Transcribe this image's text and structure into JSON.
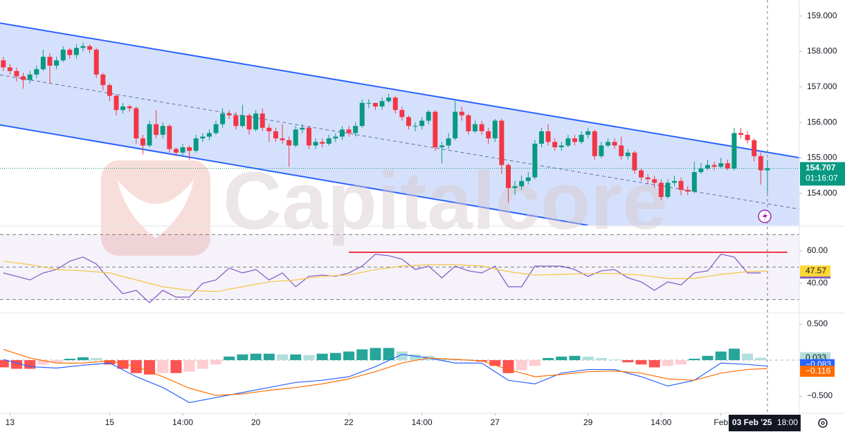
{
  "chart_data": [
    {
      "type": "candlestick",
      "watermark": "Capitalcore",
      "xlim": [
        -0.5,
        119.8
      ],
      "ylim": [
        153.1,
        159.45
      ],
      "yticks": [
        {
          "value": 154,
          "label": "154.000"
        },
        {
          "value": 155,
          "label": "155.000"
        },
        {
          "value": 156,
          "label": "156.000"
        },
        {
          "value": 157,
          "label": "157.000"
        },
        {
          "value": 158,
          "label": "158.000"
        },
        {
          "value": 159,
          "label": "159.000"
        }
      ],
      "xticks": [
        {
          "value": 1,
          "label": "13"
        },
        {
          "value": 16,
          "label": "15"
        },
        {
          "value": 27,
          "label": "14:00"
        },
        {
          "value": 38,
          "label": "20"
        },
        {
          "value": 52,
          "label": "22"
        },
        {
          "value": 63,
          "label": "14:00"
        },
        {
          "value": 74,
          "label": "27"
        },
        {
          "value": 88,
          "label": "29"
        },
        {
          "value": 99,
          "label": "14:00"
        },
        {
          "value": 108,
          "label": "Feb"
        }
      ],
      "crosshair": {
        "value": 115,
        "date": "03 Feb '25",
        "time": "18:00"
      },
      "timer": "01:16:07",
      "up_color": "#089981",
      "down_color": "#f23645",
      "channel": {
        "upper": [
          [
            -0.5,
            158.8
          ],
          [
            120,
            155.0
          ]
        ],
        "lower": [
          [
            -0.5,
            155.93
          ],
          [
            88,
            153.1
          ]
        ],
        "middle": [
          [
            -0.5,
            157.34
          ],
          [
            120,
            153.55
          ]
        ],
        "color": "#2962ff",
        "fill": "#d3dffc"
      },
      "open": [
        157.75,
        157.55,
        157.45,
        157.3,
        157.2,
        157.35,
        157.5,
        157.85,
        157.6,
        157.75,
        158.05,
        157.9,
        158.1,
        158.15,
        158.05,
        157.35,
        157.05,
        156.75,
        156.35,
        156.45,
        156.4,
        155.55,
        155.35,
        155.95,
        155.65,
        155.9,
        155.25,
        155.15,
        155.3,
        155.2,
        155.55,
        155.6,
        155.7,
        155.95,
        156.25,
        156.2,
        155.9,
        156.2,
        155.8,
        156.25,
        155.85,
        155.75,
        155.55,
        155.5,
        155.35,
        155.8,
        155.85,
        155.35,
        155.45,
        155.4,
        155.55,
        155.6,
        155.8,
        155.7,
        155.9,
        156.55,
        156.55,
        156.45,
        156.6,
        156.7,
        156.35,
        156.15,
        155.9,
        155.9,
        156.05,
        156.3,
        155.3,
        155.35,
        155.55,
        156.3,
        156.2,
        155.75,
        155.95,
        155.75,
        155.55,
        156.05,
        154.8,
        154.15,
        154.2,
        154.35,
        154.45,
        155.4,
        155.75,
        155.45,
        155.3,
        155.35,
        155.55,
        155.45,
        155.65,
        155.75,
        155.05,
        155.35,
        155.45,
        155.35,
        155.05,
        155.15,
        154.65,
        154.45,
        154.4,
        154.3,
        153.9,
        154.3,
        154.35,
        154.1,
        154.05,
        154.6,
        154.7,
        154.8,
        154.75,
        154.85,
        154.7,
        155.7,
        155.65,
        155.5,
        155.05,
        154.65
      ],
      "high": [
        157.85,
        157.65,
        157.55,
        157.4,
        157.45,
        157.6,
        158.05,
        157.95,
        157.85,
        158.15,
        158.1,
        158.2,
        158.25,
        158.2,
        158.1,
        157.4,
        157.1,
        156.8,
        156.55,
        156.5,
        156.45,
        155.65,
        156.05,
        156.35,
        156.0,
        155.95,
        155.3,
        155.4,
        155.35,
        155.65,
        155.7,
        155.8,
        156.05,
        156.4,
        156.35,
        156.3,
        156.5,
        156.25,
        156.35,
        156.4,
        155.95,
        155.85,
        155.95,
        155.6,
        155.9,
        155.95,
        155.9,
        155.55,
        155.55,
        155.65,
        155.7,
        155.9,
        155.9,
        156.0,
        156.65,
        156.65,
        156.55,
        156.7,
        156.8,
        156.75,
        156.45,
        156.2,
        156.0,
        156.15,
        156.35,
        156.35,
        155.45,
        155.7,
        156.6,
        156.45,
        156.25,
        156.05,
        156.05,
        155.85,
        156.1,
        156.1,
        154.85,
        154.35,
        154.5,
        154.6,
        155.5,
        155.85,
        155.95,
        155.55,
        155.45,
        155.65,
        155.65,
        155.75,
        155.85,
        155.8,
        155.45,
        155.55,
        155.55,
        155.6,
        155.25,
        155.2,
        154.7,
        154.55,
        154.5,
        154.4,
        154.4,
        154.5,
        154.45,
        154.2,
        154.9,
        154.85,
        154.95,
        154.9,
        155.0,
        154.95,
        155.85,
        155.85,
        155.75,
        155.55,
        155.15,
        154.95
      ],
      "low": [
        157.45,
        157.35,
        157.15,
        156.95,
        157.1,
        157.25,
        157.45,
        157.1,
        157.5,
        157.7,
        157.8,
        157.8,
        158.0,
        157.95,
        157.25,
        156.9,
        156.6,
        156.2,
        156.25,
        156.3,
        155.4,
        155.1,
        155.3,
        155.55,
        155.55,
        155.15,
        155.05,
        155.05,
        154.95,
        155.15,
        155.45,
        155.5,
        155.65,
        155.85,
        156.1,
        155.8,
        155.85,
        155.65,
        155.75,
        155.75,
        155.45,
        155.45,
        155.4,
        154.75,
        155.3,
        155.7,
        155.25,
        155.25,
        155.3,
        155.35,
        155.45,
        155.5,
        155.6,
        155.6,
        155.85,
        156.4,
        156.35,
        156.35,
        156.55,
        156.25,
        156.05,
        155.8,
        155.75,
        155.8,
        155.95,
        155.2,
        154.85,
        155.25,
        155.5,
        156.05,
        155.65,
        155.7,
        155.65,
        155.4,
        155.45,
        154.55,
        153.75,
        153.95,
        154.1,
        154.25,
        154.4,
        155.3,
        155.35,
        155.2,
        155.2,
        155.3,
        155.35,
        155.4,
        155.55,
        154.95,
        155.0,
        155.3,
        155.25,
        154.95,
        154.95,
        154.55,
        154.35,
        154.25,
        154.15,
        153.8,
        153.85,
        154.2,
        153.95,
        153.95,
        154.0,
        154.55,
        154.65,
        154.65,
        154.7,
        154.65,
        154.65,
        155.55,
        155.4,
        154.9,
        154.25,
        154.0
      ],
      "close": [
        157.55,
        157.45,
        157.3,
        157.2,
        157.35,
        157.5,
        157.85,
        157.6,
        157.75,
        158.05,
        157.9,
        158.1,
        158.15,
        158.05,
        157.35,
        157.05,
        156.75,
        156.35,
        156.45,
        156.4,
        155.55,
        155.35,
        155.95,
        155.65,
        155.9,
        155.25,
        155.15,
        155.3,
        155.2,
        155.55,
        155.6,
        155.7,
        155.95,
        156.25,
        156.2,
        155.9,
        156.2,
        155.8,
        156.25,
        155.85,
        155.75,
        155.55,
        155.5,
        155.35,
        155.8,
        155.85,
        155.35,
        155.45,
        155.4,
        155.55,
        155.6,
        155.8,
        155.7,
        155.9,
        156.55,
        156.55,
        156.45,
        156.6,
        156.7,
        156.35,
        156.15,
        155.9,
        155.9,
        156.05,
        156.3,
        155.3,
        155.35,
        155.55,
        156.3,
        156.2,
        155.75,
        155.95,
        155.75,
        155.55,
        156.05,
        154.8,
        154.15,
        154.2,
        154.35,
        154.45,
        155.4,
        155.75,
        155.45,
        155.3,
        155.35,
        155.55,
        155.45,
        155.65,
        155.75,
        155.05,
        155.35,
        155.45,
        155.35,
        155.05,
        155.15,
        154.65,
        154.45,
        154.4,
        154.3,
        153.9,
        154.3,
        154.35,
        154.1,
        154.05,
        154.6,
        154.7,
        154.8,
        154.75,
        154.85,
        154.7,
        155.7,
        155.65,
        155.5,
        155.05,
        154.65,
        154.707
      ]
    },
    {
      "type": "line",
      "ylim": [
        22.1,
        74
      ],
      "yticks": [
        {
          "value": 60,
          "label": "60.00"
        },
        {
          "value": 40,
          "label": "40.00"
        }
      ],
      "bands": [
        70,
        50,
        30
      ],
      "band_color": "#7e57c2",
      "level": {
        "value": 59.1,
        "from": 52,
        "to": 118,
        "color": "#f23645"
      },
      "series": [
        {
          "color": "#7e57c2",
          "x": [
            0,
            2,
            4,
            6,
            8,
            10,
            12,
            14,
            16,
            18,
            20,
            22,
            24,
            26,
            28,
            30,
            32,
            34,
            36,
            38,
            40,
            42,
            44,
            46,
            48,
            50,
            52,
            54,
            56,
            58,
            60,
            62,
            64,
            66,
            68,
            70,
            72,
            74,
            76,
            78,
            80,
            82,
            84,
            86,
            88,
            90,
            92,
            94,
            96,
            98,
            100,
            102,
            104,
            106,
            108,
            110,
            112,
            114
          ],
          "values": [
            46.4,
            44.3,
            42.1,
            46.4,
            48.5,
            53.6,
            56.2,
            51.9,
            42.1,
            33.6,
            35.7,
            28.1,
            35.7,
            31.5,
            31.5,
            40,
            42.1,
            49.4,
            46.4,
            48.5,
            42.1,
            46.4,
            37.9,
            44.3,
            45.1,
            44.3,
            46.4,
            50.6,
            57.9,
            57.0,
            54.9,
            48.5,
            50.6,
            43.4,
            50.6,
            47.7,
            46.4,
            50.6,
            37.9,
            37.9,
            50.6,
            50.6,
            50.6,
            48.5,
            44.3,
            47.7,
            48.5,
            43.4,
            40.9,
            35.7,
            40.9,
            39.1,
            46.4,
            47.7,
            57.9,
            56.2,
            46.4,
            46.41
          ],
          "label_color": "#7e57c2"
        },
        {
          "color": "#f5c542",
          "x": [
            0,
            4,
            8,
            12,
            16,
            20,
            24,
            28,
            32,
            36,
            40,
            44,
            48,
            52,
            56,
            60,
            64,
            68,
            72,
            76,
            80,
            84,
            88,
            92,
            96,
            100,
            104,
            108,
            112,
            115
          ],
          "values": [
            53.6,
            51.5,
            48.5,
            47.7,
            46.4,
            42.1,
            37.9,
            35.7,
            34.9,
            37.9,
            40.9,
            42.1,
            44.3,
            45.1,
            48.5,
            50.6,
            51.5,
            51.5,
            50.6,
            47.2,
            45.1,
            45.5,
            46.0,
            46.0,
            45.1,
            43.0,
            43.0,
            45.5,
            47.2,
            47.57
          ],
          "label_color": "#fdd835"
        }
      ]
    },
    {
      "type": "macd",
      "ylim": [
        -0.73,
        0.635
      ],
      "yticks": [
        {
          "value": 0.5,
          "label": "0.500"
        },
        {
          "value": -0.5,
          "label": "−0.500"
        }
      ],
      "histogram": {
        "x": [
          0,
          2,
          4,
          6,
          8,
          10,
          12,
          14,
          16,
          18,
          20,
          22,
          24,
          26,
          28,
          30,
          32,
          34,
          36,
          38,
          40,
          42,
          44,
          46,
          48,
          50,
          52,
          54,
          56,
          58,
          60,
          62,
          64,
          66,
          68,
          70,
          72,
          74,
          76,
          78,
          80,
          82,
          84,
          86,
          88,
          90,
          92,
          94,
          96,
          98,
          100,
          102,
          104,
          106,
          108,
          110,
          112,
          114
        ],
        "values": [
          -0.1,
          -0.12,
          -0.12,
          -0.06,
          -0.03,
          0.02,
          0.04,
          0.03,
          -0.06,
          -0.12,
          -0.18,
          -0.2,
          -0.18,
          -0.18,
          -0.16,
          -0.12,
          -0.06,
          0.05,
          0.08,
          0.09,
          0.09,
          0.08,
          0.08,
          0.07,
          0.09,
          0.1,
          0.12,
          0.15,
          0.17,
          0.17,
          0.12,
          0.08,
          0.06,
          0.03,
          0.02,
          0.01,
          -0.02,
          -0.08,
          -0.18,
          -0.14,
          -0.08,
          0.03,
          0.05,
          0.06,
          0.05,
          0.03,
          0.01,
          -0.03,
          -0.06,
          -0.1,
          -0.08,
          -0.06,
          0.02,
          0.06,
          0.12,
          0.16,
          0.09,
          0.033
        ],
        "colors": {
          "up_grow": "#26a69a",
          "up_fall": "#b2dfdb",
          "down_fall": "#ff5252",
          "down_grow": "#ffcdd2"
        }
      },
      "series": [
        {
          "color": "#2962ff",
          "last_label": "−0.083",
          "x": [
            0,
            4,
            8,
            12,
            16,
            20,
            24,
            28,
            32,
            36,
            40,
            44,
            48,
            52,
            56,
            60,
            64,
            68,
            72,
            76,
            80,
            84,
            88,
            92,
            96,
            100,
            104,
            108,
            112,
            115
          ],
          "values": [
            0.01,
            -0.09,
            -0.11,
            -0.07,
            -0.04,
            -0.23,
            -0.38,
            -0.59,
            -0.52,
            -0.45,
            -0.38,
            -0.31,
            -0.28,
            -0.23,
            -0.09,
            0.08,
            0.03,
            -0.04,
            -0.04,
            -0.28,
            -0.33,
            -0.18,
            -0.13,
            -0.13,
            -0.23,
            -0.36,
            -0.28,
            -0.04,
            -0.06,
            -0.083
          ]
        },
        {
          "color": "#ff6d00",
          "last_label": "−0.116",
          "x": [
            0,
            4,
            8,
            12,
            16,
            20,
            24,
            28,
            32,
            36,
            40,
            44,
            48,
            52,
            56,
            60,
            64,
            68,
            72,
            76,
            80,
            84,
            88,
            92,
            96,
            100,
            104,
            108,
            112,
            115
          ],
          "values": [
            0.15,
            0.03,
            -0.04,
            -0.04,
            -0.01,
            -0.09,
            -0.23,
            -0.39,
            -0.49,
            -0.47,
            -0.42,
            -0.38,
            -0.33,
            -0.26,
            -0.16,
            -0.04,
            0.03,
            0.01,
            -0.01,
            -0.13,
            -0.23,
            -0.2,
            -0.16,
            -0.15,
            -0.18,
            -0.26,
            -0.28,
            -0.18,
            -0.13,
            -0.116
          ]
        }
      ]
    }
  ]
}
